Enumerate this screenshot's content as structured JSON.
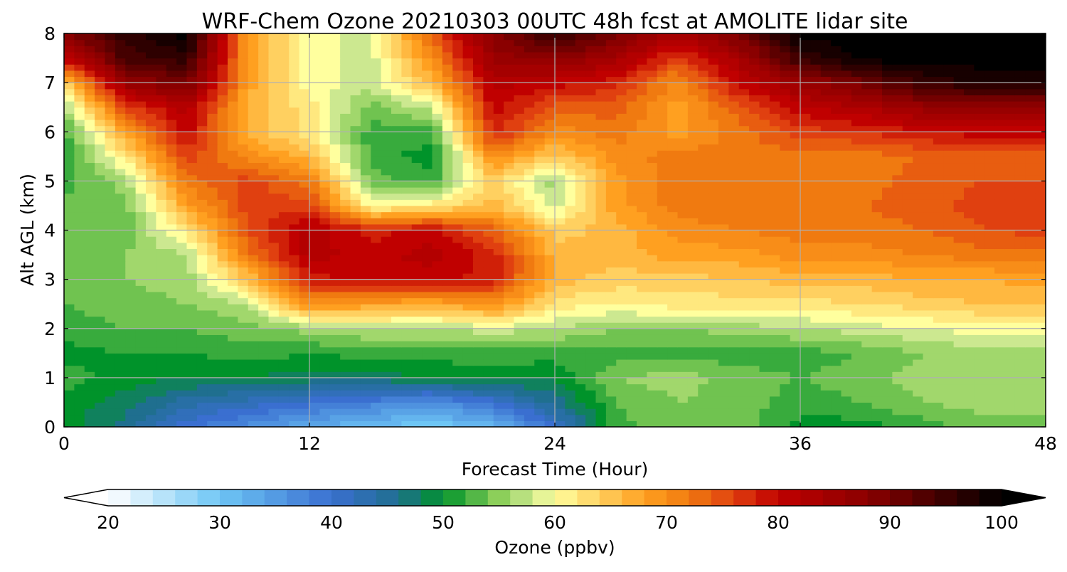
{
  "chart_data": {
    "type": "heatmap",
    "title": "WRF-Chem Ozone  20210303 00UTC 48h fcst at AMOLITE lidar site",
    "xlabel": "Forecast Time (Hour)",
    "ylabel": "Alt AGL (km)",
    "xlim": [
      0,
      48
    ],
    "ylim": [
      0,
      8
    ],
    "x_ticks": [
      0,
      12,
      24,
      36,
      48
    ],
    "y_ticks": [
      0,
      1,
      2,
      3,
      4,
      5,
      6,
      7,
      8
    ],
    "grid": true,
    "x": [
      0,
      3,
      6,
      9,
      12,
      15,
      18,
      21,
      24,
      27,
      30,
      33,
      36,
      39,
      42,
      45,
      48
    ],
    "y": [
      0,
      0.5,
      1,
      1.5,
      2,
      2.5,
      3,
      3.5,
      4,
      4.5,
      5,
      5.5,
      6,
      6.5,
      7,
      7.5,
      8
    ],
    "z": [
      [
        50,
        46,
        40,
        36,
        33,
        31,
        29,
        32,
        40,
        52,
        55,
        54,
        50,
        50,
        52,
        54,
        54
      ],
      [
        50,
        48,
        44,
        42,
        40,
        38,
        36,
        40,
        46,
        53,
        55,
        54,
        52,
        53,
        55,
        56,
        56
      ],
      [
        52,
        50,
        49,
        49,
        48,
        48,
        49,
        50,
        49,
        55,
        56,
        54,
        53,
        54,
        56,
        57,
        57
      ],
      [
        50,
        51,
        51,
        52,
        51,
        52,
        52,
        52,
        52,
        52,
        52,
        52,
        52,
        53,
        55,
        56,
        56
      ],
      [
        52,
        53,
        53,
        54,
        56,
        57,
        57,
        58,
        57,
        55,
        55,
        56,
        57,
        58,
        59,
        60,
        60
      ],
      [
        53,
        54,
        55,
        57,
        70,
        68,
        67,
        70,
        62,
        61,
        62,
        62,
        62,
        63,
        64,
        65,
        65
      ],
      [
        54,
        55,
        56,
        65,
        78,
        80,
        80,
        78,
        66,
        64,
        64,
        65,
        66,
        66,
        67,
        67,
        68
      ],
      [
        55,
        55,
        57,
        72,
        82,
        80,
        82,
        78,
        66,
        66,
        68,
        68,
        70,
        70,
        71,
        72,
        72
      ],
      [
        55,
        54,
        62,
        75,
        82,
        78,
        80,
        74,
        64,
        66,
        70,
        71,
        72,
        72,
        73,
        75,
        76
      ],
      [
        54,
        54,
        68,
        76,
        76,
        60,
        62,
        66,
        58,
        68,
        72,
        72,
        73,
        73,
        74,
        76,
        76
      ],
      [
        52,
        56,
        72,
        76,
        72,
        54,
        52,
        64,
        56,
        68,
        72,
        72,
        72,
        72,
        74,
        75,
        75
      ],
      [
        51,
        62,
        76,
        70,
        66,
        52,
        50,
        70,
        64,
        70,
        72,
        72,
        72,
        72,
        73,
        74,
        74
      ],
      [
        52,
        68,
        80,
        66,
        62,
        52,
        52,
        78,
        70,
        72,
        68,
        72,
        76,
        77,
        79,
        80,
        80
      ],
      [
        56,
        76,
        82,
        66,
        62,
        54,
        58,
        80,
        74,
        74,
        68,
        74,
        80,
        83,
        86,
        86,
        86
      ],
      [
        64,
        86,
        90,
        68,
        60,
        58,
        66,
        82,
        80,
        78,
        70,
        80,
        86,
        90,
        95,
        98,
        98
      ],
      [
        80,
        94,
        96,
        68,
        60,
        58,
        70,
        86,
        88,
        84,
        76,
        84,
        95,
        100,
        100,
        100,
        100
      ],
      [
        88,
        96,
        100,
        68,
        60,
        58,
        74,
        88,
        96,
        90,
        84,
        90,
        100,
        100,
        100,
        100,
        100
      ]
    ],
    "colorbar": {
      "label": "Ozone  (ppbv)",
      "min": 20,
      "max": 100,
      "extend": "both",
      "tick_values": [
        20,
        30,
        40,
        50,
        60,
        70,
        80,
        90,
        100
      ],
      "tick_labels": [
        "20",
        "30",
        "40",
        "50",
        "60",
        "70",
        "80",
        "90",
        "100"
      ],
      "colors": [
        {
          "v": 20,
          "c": "#ffffff"
        },
        {
          "v": 30,
          "c": "#6ec6f5"
        },
        {
          "v": 40,
          "c": "#3a6fd0"
        },
        {
          "v": 46,
          "c": "#1f6f8f"
        },
        {
          "v": 50,
          "c": "#00932a"
        },
        {
          "v": 55,
          "c": "#8ccf5a"
        },
        {
          "v": 58,
          "c": "#cce890"
        },
        {
          "v": 60,
          "c": "#ffff9e"
        },
        {
          "v": 64,
          "c": "#ffd060"
        },
        {
          "v": 68,
          "c": "#ffa020"
        },
        {
          "v": 72,
          "c": "#f07a10"
        },
        {
          "v": 76,
          "c": "#e04010"
        },
        {
          "v": 80,
          "c": "#c00000"
        },
        {
          "v": 88,
          "c": "#8a0000"
        },
        {
          "v": 95,
          "c": "#3a0000"
        },
        {
          "v": 100,
          "c": "#000000"
        }
      ]
    }
  }
}
